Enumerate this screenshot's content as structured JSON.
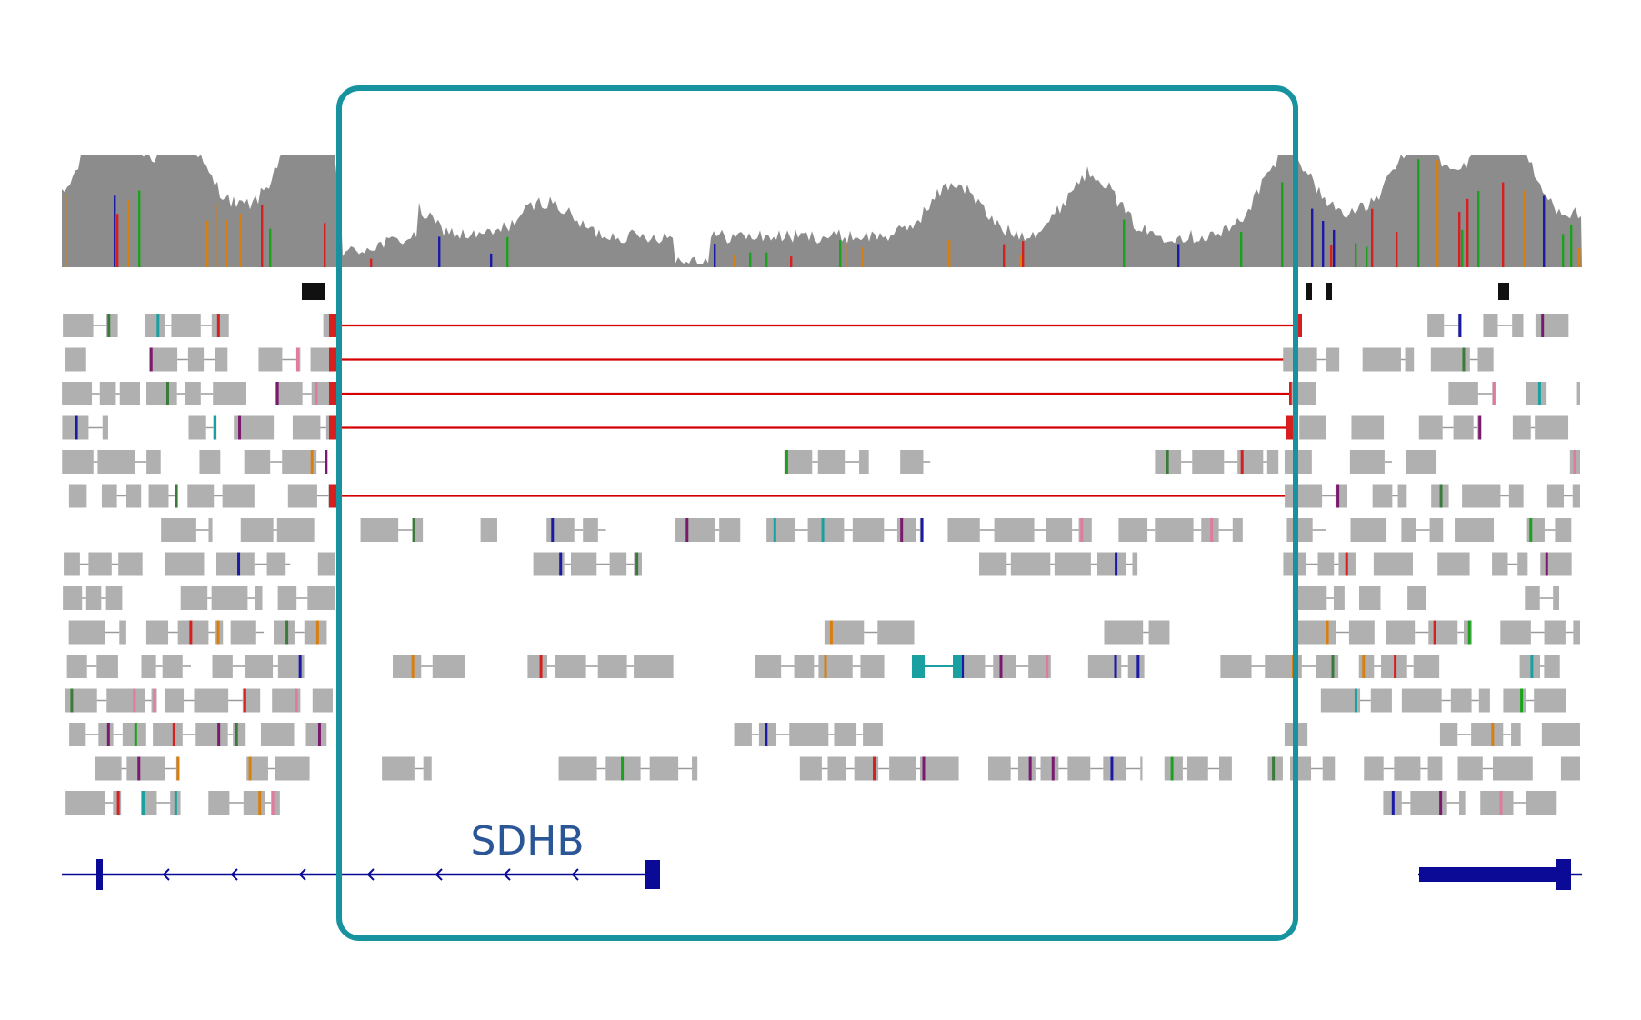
{
  "gene": {
    "label": "SDHB"
  },
  "colors": {
    "coverage": "#8c8c8c",
    "read": "#b0b0b0",
    "read_line": "#9a9a9a",
    "deletion_line": "#d40000",
    "highlight_box": "#16939e",
    "gene_model": "#0a0a96",
    "gene_label": "#2a5597",
    "mismatch_palette": [
      "#d62020",
      "#1a1aa6",
      "#1aa31a",
      "#d87f0f",
      "#7a1a6e",
      "#1aa0a0",
      "#e07b9e",
      "#3a7a3a"
    ]
  },
  "tracks": {
    "coverage": "coverage-track",
    "feature_marks": "feature-mark-track",
    "alignments": "alignment-track",
    "genes": "gene-track"
  }
}
